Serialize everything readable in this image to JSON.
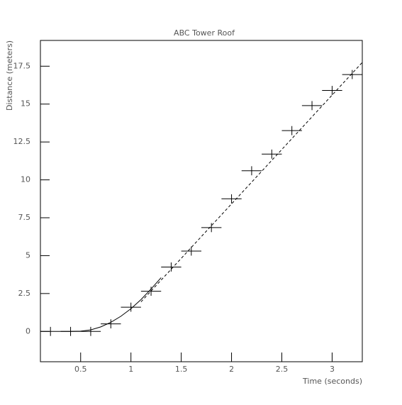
{
  "chart_data": {
    "type": "errorbar",
    "title": "ABC Tower Roof",
    "x_label": "Time (seconds)",
    "y_label": "Distance (meters)",
    "xlim": [
      0.1,
      3.3
    ],
    "ylim": [
      -2,
      19.2
    ],
    "xticks": [
      0.5,
      1,
      1.5,
      2,
      2.5,
      3
    ],
    "yticks": [
      0,
      2.5,
      5,
      7.5,
      10,
      12.5,
      15,
      17.5
    ],
    "color": "#000000",
    "points": {
      "x": [
        0.2,
        0.4,
        0.6,
        0.8,
        1.0,
        1.2,
        1.4,
        1.6,
        1.8,
        2.0,
        2.2,
        2.4,
        2.6,
        2.8,
        3.0,
        3.2
      ],
      "y": [
        0,
        0,
        0,
        0.5,
        1.6,
        2.65,
        4.25,
        5.3,
        6.85,
        8.75,
        10.6,
        11.7,
        13.25,
        14.9,
        15.9,
        16.95
      ],
      "xerr": [
        0.1,
        0.1,
        0.1,
        0.1,
        0.1,
        0.1,
        0.1,
        0.1,
        0.1,
        0.1,
        0.1,
        0.1,
        0.1,
        0.1,
        0.1,
        0.1
      ],
      "yerr": [
        0.3,
        0.3,
        0.3,
        0.3,
        0.3,
        0.3,
        0.3,
        0.3,
        0.3,
        0.3,
        0.3,
        0.3,
        0.3,
        0.3,
        0.3,
        0.3
      ]
    },
    "curves": [
      {
        "style": "solid",
        "x": [
          0.3,
          0.4,
          0.5,
          0.6,
          0.7,
          0.8,
          0.9,
          1.0,
          1.1,
          1.2,
          1.3
        ],
        "y": [
          0,
          0,
          0.02,
          0.1,
          0.3,
          0.6,
          1.0,
          1.5,
          2.1,
          2.8,
          3.55
        ]
      },
      {
        "style": "dashed",
        "x": [
          1.1,
          3.3
        ],
        "y": [
          1.95,
          17.75
        ]
      }
    ]
  }
}
